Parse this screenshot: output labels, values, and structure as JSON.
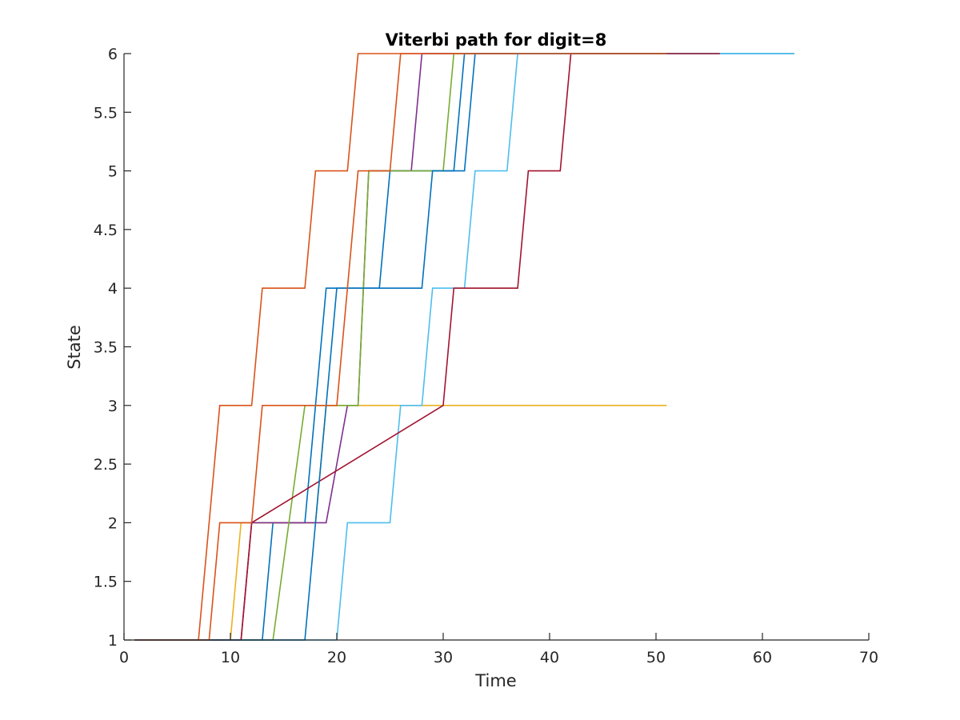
{
  "chart_data": {
    "type": "line",
    "title": "Viterbi path for digit=8",
    "xlabel": "Time",
    "ylabel": "State",
    "xlim": [
      0,
      70
    ],
    "ylim": [
      1,
      6
    ],
    "xticks": [
      "0",
      "10",
      "20",
      "30",
      "40",
      "50",
      "60",
      "70"
    ],
    "yticks": [
      "1",
      "1.5",
      "2",
      "2.5",
      "3",
      "3.5",
      "4",
      "4.5",
      "5",
      "5.5",
      "6"
    ],
    "grid": false,
    "legend": "none",
    "series": [
      {
        "color": "#0072BD",
        "x": [
          1,
          13,
          14,
          17,
          19,
          24,
          25,
          29,
          30,
          32,
          33,
          63
        ],
        "y": [
          1,
          1,
          2,
          2,
          4,
          4,
          5,
          5,
          5,
          5,
          6,
          6
        ]
      },
      {
        "color": "#D95319",
        "x": [
          1,
          7,
          9,
          12,
          13,
          17,
          18,
          21,
          22,
          51
        ],
        "y": [
          1,
          1,
          3,
          3,
          4,
          4,
          5,
          5,
          6,
          6
        ]
      },
      {
        "color": "#EDB120",
        "x": [
          1,
          10,
          11,
          18,
          19,
          51
        ],
        "y": [
          1,
          1,
          2,
          2,
          3,
          3
        ]
      },
      {
        "color": "#7E2F8E",
        "x": [
          1,
          11,
          12,
          19,
          21,
          22,
          23,
          27,
          28,
          51
        ],
        "y": [
          1,
          1,
          2,
          2,
          3,
          3,
          5,
          5,
          6,
          6
        ]
      },
      {
        "color": "#77AC30",
        "x": [
          1,
          14,
          17,
          22,
          23,
          30,
          31,
          51
        ],
        "y": [
          1,
          1,
          3,
          3,
          5,
          5,
          6,
          6
        ]
      },
      {
        "color": "#4DBEEE",
        "x": [
          1,
          20,
          21,
          25,
          26,
          28,
          29,
          32,
          33,
          36,
          37,
          63
        ],
        "y": [
          1,
          1,
          2,
          2,
          3,
          3,
          4,
          4,
          5,
          5,
          6,
          6
        ]
      },
      {
        "color": "#A2142F",
        "x": [
          1,
          11,
          12,
          30,
          31,
          37,
          38,
          41,
          42,
          56
        ],
        "y": [
          1,
          1,
          2,
          3,
          4,
          4,
          5,
          5,
          6,
          6
        ]
      },
      {
        "color": "#0072BD",
        "x": [
          1,
          17,
          18,
          20,
          22,
          28,
          29,
          31,
          32,
          51
        ],
        "y": [
          1,
          1,
          2,
          4,
          4,
          4,
          5,
          5,
          6,
          6
        ]
      },
      {
        "color": "#D95319",
        "x": [
          1,
          8,
          9,
          12,
          13,
          20,
          22,
          25,
          26,
          51
        ],
        "y": [
          1,
          1,
          2,
          2,
          3,
          3,
          5,
          5,
          6,
          6
        ]
      }
    ]
  }
}
